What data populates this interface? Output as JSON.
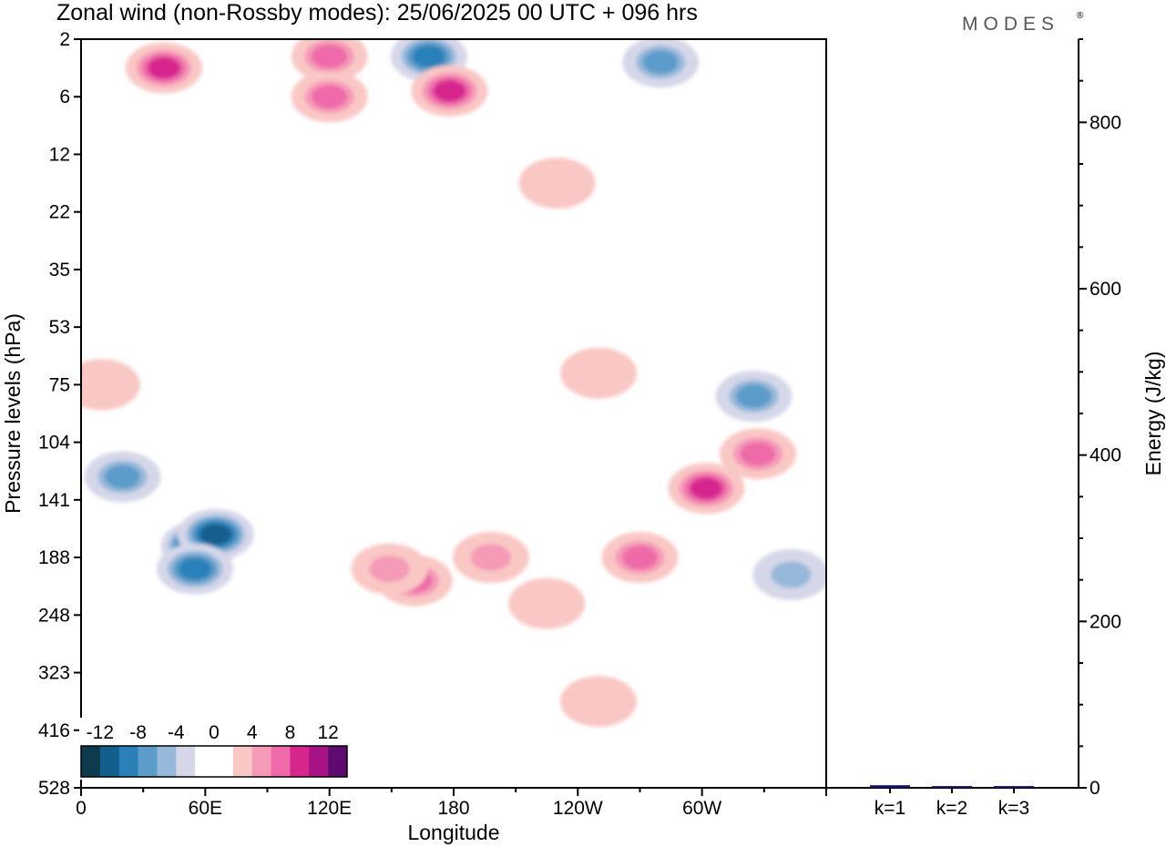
{
  "title": "Zonal wind (non-Rossby modes):  25/06/2025  00 UTC  + 096 hrs",
  "logo": "MODES",
  "logo_mark": "®",
  "colors": {
    "neg": [
      "#0e3a4e",
      "#125f8e",
      "#2b80b8",
      "#5b9ccb",
      "#98b8d9",
      "#d5d7e9"
    ],
    "zero": "#ffffff",
    "pos": [
      "#f9c7c4",
      "#f59ab7",
      "#ee6aa8",
      "#d6268e",
      "#a71284",
      "#5e0a6e"
    ],
    "axis": "#000000"
  },
  "chart_data": [
    {
      "type": "heatmap",
      "title": "Zonal wind (non-Rossby modes):  25/06/2025  00 UTC  + 096 hrs",
      "xlabel": "Longitude",
      "ylabel": "Pressure levels (hPa)",
      "x_ticks": [
        "0",
        "60E",
        "120E",
        "180",
        "120W",
        "60W"
      ],
      "x_tick_values": [
        0,
        60,
        120,
        180,
        240,
        300
      ],
      "xlim": [
        0,
        360
      ],
      "y_ticks": [
        "2",
        "6",
        "12",
        "22",
        "35",
        "53",
        "75",
        "104",
        "141",
        "188",
        "248",
        "323",
        "416",
        "528"
      ],
      "colorbar_labels": [
        "-12",
        "-8",
        "-4",
        "0",
        "4",
        "8",
        "12"
      ],
      "colorbar_levels": [
        -14,
        -12,
        -10,
        -8,
        -6,
        -4,
        -2,
        2,
        4,
        6,
        8,
        10,
        12,
        14
      ],
      "features": [
        {
          "lon": 57,
          "level_index": 8.8,
          "value": -14
        },
        {
          "lon": 65,
          "level_index": 8.6,
          "value": -12
        },
        {
          "lon": 55,
          "level_index": 9.2,
          "value": -10
        },
        {
          "lon": 20,
          "level_index": 7.6,
          "value": -8
        },
        {
          "lon": 168,
          "level_index": 0.3,
          "value": -10
        },
        {
          "lon": 280,
          "level_index": 0.4,
          "value": -8
        },
        {
          "lon": 325,
          "level_index": 6.2,
          "value": -8
        },
        {
          "lon": 343,
          "level_index": 9.3,
          "value": -6
        },
        {
          "lon": 178,
          "level_index": 0.9,
          "value": 10
        },
        {
          "lon": 40,
          "level_index": 0.5,
          "value": 10
        },
        {
          "lon": 120,
          "level_index": 0.3,
          "value": 8
        },
        {
          "lon": 120,
          "level_index": 1.0,
          "value": 8
        },
        {
          "lon": 302,
          "level_index": 7.8,
          "value": 10
        },
        {
          "lon": 327,
          "level_index": 7.2,
          "value": 8
        },
        {
          "lon": 161,
          "level_index": 9.4,
          "value": 8
        },
        {
          "lon": 149,
          "level_index": 9.2,
          "value": 6
        },
        {
          "lon": 270,
          "level_index": 9.0,
          "value": 8
        },
        {
          "lon": 198,
          "level_index": 9.0,
          "value": 6
        },
        {
          "lon": 225,
          "level_index": 9.8,
          "value": 4
        },
        {
          "lon": 250,
          "level_index": 11.5,
          "value": 4
        },
        {
          "lon": 230,
          "level_index": 2.5,
          "value": 2
        },
        {
          "lon": 250,
          "level_index": 5.8,
          "value": 2
        },
        {
          "lon": 10,
          "level_index": 6.0,
          "value": 4
        }
      ]
    },
    {
      "type": "bar",
      "categories": [
        "k=1",
        "k=2",
        "k=3"
      ],
      "values": [
        2,
        1,
        1
      ],
      "ylabel": "Energy (J/kg)",
      "y_ticks": [
        "0",
        "200",
        "400",
        "600",
        "800"
      ],
      "y_tick_values": [
        0,
        200,
        400,
        600,
        800
      ],
      "ylim": [
        0,
        900
      ],
      "bar_color": "#14146e"
    }
  ]
}
